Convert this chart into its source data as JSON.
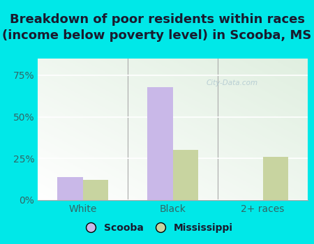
{
  "title": "Breakdown of poor residents within races\n(income below poverty level) in Scooba, MS",
  "categories": [
    "White",
    "Black",
    "2+ races"
  ],
  "scooba_values": [
    0.14,
    0.68,
    0.0
  ],
  "mississippi_values": [
    0.12,
    0.3,
    0.26
  ],
  "scooba_color": "#c9b8e8",
  "mississippi_color": "#c8d4a0",
  "background_color": "#00e8e8",
  "yticks": [
    0.0,
    0.25,
    0.5,
    0.75
  ],
  "ytick_labels": [
    "0%",
    "25%",
    "50%",
    "75%"
  ],
  "ylim": [
    0,
    0.85
  ],
  "bar_width": 0.28,
  "title_fontsize": 13,
  "legend_fontsize": 10,
  "tick_fontsize": 10,
  "label_color": "#336666",
  "watermark": "City-Data.com"
}
